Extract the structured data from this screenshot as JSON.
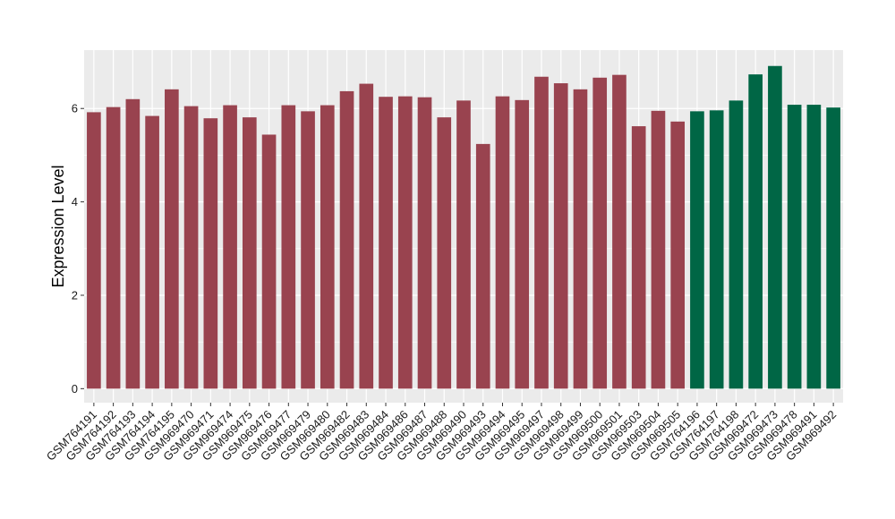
{
  "chart_data": {
    "type": "bar",
    "title": "",
    "xlabel": "",
    "ylabel": "Expression Level",
    "ylim": [
      -0.3,
      7.25
    ],
    "yticks": [
      0,
      2,
      4,
      6
    ],
    "grid": true,
    "legend": "none",
    "colors": {
      "panel_background": "#EBEBEB",
      "grid_line": "#FFFFFF",
      "group1": "#99434F",
      "group2": "#006645"
    },
    "categories": [
      "GSM764191",
      "GSM764192",
      "GSM764193",
      "GSM764194",
      "GSM764195",
      "GSM969470",
      "GSM969471",
      "GSM969474",
      "GSM969475",
      "GSM969476",
      "GSM969477",
      "GSM969479",
      "GSM969480",
      "GSM969482",
      "GSM969483",
      "GSM969484",
      "GSM969486",
      "GSM969487",
      "GSM969488",
      "GSM969490",
      "GSM969493",
      "GSM969494",
      "GSM969495",
      "GSM969497",
      "GSM969498",
      "GSM969499",
      "GSM969500",
      "GSM969501",
      "GSM969503",
      "GSM969504",
      "GSM969505",
      "GSM764196",
      "GSM764197",
      "GSM764198",
      "GSM969472",
      "GSM969473",
      "GSM969478",
      "GSM969491",
      "GSM969492"
    ],
    "values": [
      5.92,
      6.03,
      6.2,
      5.84,
      6.41,
      6.05,
      5.79,
      6.07,
      5.81,
      5.44,
      6.07,
      5.94,
      6.07,
      6.37,
      6.53,
      6.25,
      6.26,
      6.24,
      5.81,
      6.17,
      5.24,
      6.26,
      6.18,
      6.68,
      6.54,
      6.41,
      6.66,
      6.72,
      5.62,
      5.95,
      5.72,
      5.94,
      5.96,
      6.17,
      6.73,
      6.91,
      6.08,
      6.08,
      6.02
    ],
    "groups": [
      1,
      1,
      1,
      1,
      1,
      1,
      1,
      1,
      1,
      1,
      1,
      1,
      1,
      1,
      1,
      1,
      1,
      1,
      1,
      1,
      1,
      1,
      1,
      1,
      1,
      1,
      1,
      1,
      1,
      1,
      1,
      2,
      2,
      2,
      2,
      2,
      2,
      2,
      2
    ]
  }
}
